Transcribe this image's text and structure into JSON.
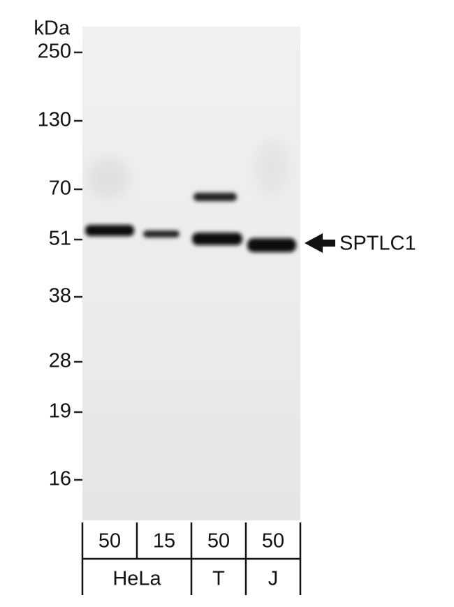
{
  "unit_label": "kDa",
  "markers": [
    "250",
    "130",
    "70",
    "51",
    "38",
    "28",
    "19",
    "16"
  ],
  "target_label": "SPTLC1",
  "lanes": {
    "amounts": [
      "50",
      "15",
      "50",
      "50"
    ]
  },
  "samples": [
    "HeLa",
    "T",
    "J"
  ]
}
